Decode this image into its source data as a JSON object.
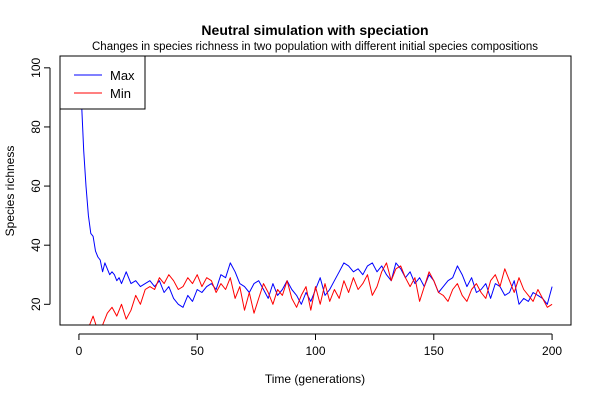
{
  "chart_data": {
    "type": "line",
    "title": "Neutral simulation with speciation",
    "subtitle": "Changes in species richness in two population with different initial species compositions",
    "xlabel": "Time (generations)",
    "ylabel": "Species richness",
    "xlim": [
      -8,
      208
    ],
    "ylim": [
      13,
      104
    ],
    "xticks": [
      0,
      50,
      100,
      150,
      200
    ],
    "xtick_labels": [
      "0",
      "50",
      "100",
      "150",
      "200"
    ],
    "yticks": [
      20,
      40,
      60,
      80,
      100
    ],
    "ytick_labels": [
      "20",
      "40",
      "60",
      "80",
      "100"
    ],
    "grid": false,
    "legend": "top-left",
    "series": [
      {
        "name": "Max",
        "color": "#0000ff",
        "x": [
          0,
          1,
          2,
          3,
          4,
          5,
          6,
          7,
          8,
          9,
          10,
          11,
          12,
          13,
          14,
          15,
          16,
          17,
          18,
          19,
          20,
          22,
          24,
          26,
          28,
          30,
          32,
          34,
          36,
          38,
          40,
          42,
          44,
          46,
          48,
          50,
          52,
          54,
          56,
          58,
          60,
          62,
          64,
          66,
          68,
          70,
          72,
          74,
          76,
          78,
          80,
          82,
          84,
          86,
          88,
          90,
          92,
          94,
          96,
          98,
          100,
          102,
          104,
          106,
          108,
          110,
          112,
          114,
          116,
          118,
          120,
          122,
          124,
          126,
          128,
          130,
          132,
          134,
          136,
          138,
          140,
          142,
          144,
          146,
          148,
          150,
          152,
          154,
          156,
          158,
          160,
          162,
          164,
          166,
          168,
          170,
          172,
          174,
          176,
          178,
          180,
          182,
          184,
          186,
          188,
          190,
          192,
          194,
          196,
          198,
          200
        ],
        "values": [
          100,
          90,
          72,
          60,
          50,
          44,
          43,
          38,
          36,
          35,
          31,
          34,
          32,
          30,
          31,
          30,
          28,
          29,
          27,
          29,
          31,
          27,
          28,
          26,
          27,
          28,
          26,
          28,
          24,
          26,
          22,
          20,
          19,
          23,
          21,
          25,
          24,
          26,
          27,
          25,
          30,
          29,
          34,
          31,
          27,
          26,
          24,
          27,
          28,
          25,
          22,
          27,
          23,
          25,
          28,
          25,
          23,
          20,
          24,
          21,
          25,
          29,
          23,
          25,
          28,
          31,
          34,
          33,
          31,
          32,
          30,
          33,
          34,
          31,
          33,
          30,
          28,
          34,
          32,
          29,
          31,
          27,
          29,
          26,
          30,
          28,
          24,
          26,
          28,
          29,
          33,
          30,
          26,
          29,
          24,
          25,
          27,
          22,
          27,
          26,
          23,
          24,
          28,
          20,
          22,
          21,
          24,
          23,
          22,
          20,
          26
        ]
      },
      {
        "name": "Min",
        "color": "#ff0000",
        "x": [
          0,
          2,
          4,
          6,
          8,
          10,
          12,
          14,
          16,
          18,
          20,
          22,
          24,
          26,
          28,
          30,
          32,
          34,
          36,
          38,
          40,
          42,
          44,
          46,
          48,
          50,
          52,
          54,
          56,
          58,
          60,
          62,
          64,
          66,
          68,
          70,
          72,
          74,
          76,
          78,
          80,
          82,
          84,
          86,
          88,
          90,
          92,
          94,
          96,
          98,
          100,
          102,
          104,
          106,
          108,
          110,
          112,
          114,
          116,
          118,
          120,
          122,
          124,
          126,
          128,
          130,
          132,
          134,
          136,
          138,
          140,
          142,
          144,
          146,
          148,
          150,
          152,
          154,
          156,
          158,
          160,
          162,
          164,
          166,
          168,
          170,
          172,
          174,
          176,
          178,
          180,
          182,
          184,
          186,
          188,
          190,
          192,
          194,
          196,
          198,
          200
        ],
        "values": [
          8,
          10,
          12,
          16,
          11,
          13,
          17,
          19,
          16,
          20,
          15,
          18,
          23,
          20,
          25,
          26,
          25,
          29,
          27,
          30,
          28,
          25,
          26,
          29,
          27,
          30,
          26,
          29,
          28,
          24,
          27,
          25,
          29,
          22,
          26,
          18,
          24,
          17,
          22,
          27,
          24,
          20,
          25,
          23,
          28,
          22,
          19,
          23,
          26,
          18,
          26,
          20,
          27,
          21,
          25,
          22,
          28,
          24,
          29,
          25,
          27,
          30,
          23,
          26,
          31,
          34,
          28,
          32,
          33,
          29,
          26,
          29,
          21,
          26,
          31,
          28,
          24,
          23,
          21,
          25,
          27,
          23,
          21,
          25,
          27,
          24,
          22,
          28,
          30,
          26,
          32,
          28,
          24,
          29,
          25,
          23,
          21,
          25,
          22,
          19,
          20
        ]
      }
    ]
  }
}
